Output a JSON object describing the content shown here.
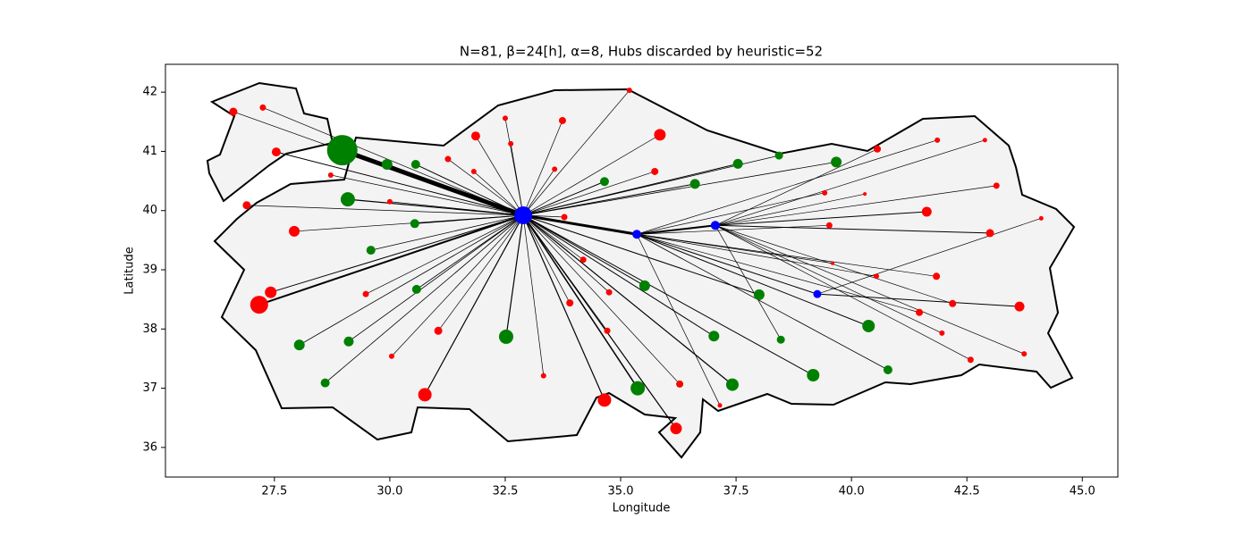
{
  "chart_data": {
    "type": "scatter",
    "title": "N=81, β=24[h], α=8, Hubs discarded by heuristic=52",
    "x_label": "Longitude",
    "y_label": "Latitude",
    "xlim": [
      25.14,
      45.77
    ],
    "ylim": [
      35.5,
      42.47
    ],
    "xticks": [
      27.5,
      {
        "value": 30,
        "label": "30.0"
      },
      32.5,
      {
        "value": 35,
        "label": "35.0"
      },
      37.5,
      {
        "value": 40,
        "label": "40.0"
      },
      42.5,
      {
        "value": 45,
        "label": "45.0"
      }
    ],
    "yticks": [
      36,
      37,
      38,
      39,
      40,
      41,
      42
    ],
    "x": [
      32.89,
      35.35,
      37.05,
      39.26,
      28.97,
      29.94,
      30.56,
      29.09,
      30.54,
      29.59,
      30.58,
      28.04,
      29.11,
      28.6,
      32.52,
      34.65,
      36.61,
      37.54,
      38.43,
      39.67,
      35.52,
      38.0,
      37.02,
      38.47,
      40.37,
      40.79,
      39.17,
      37.42,
      35.37,
      26.61,
      27.25,
      27.54,
      28.72,
      26.9,
      30.0,
      27.93,
      27.42,
      27.17,
      29.48,
      30.04,
      31.05,
      30.76,
      31.86,
      31.26,
      31.82,
      32.5,
      32.62,
      33.74,
      33.57,
      35.19,
      35.85,
      35.74,
      33.78,
      34.19,
      33.9,
      34.75,
      34.71,
      33.33,
      34.65,
      36.2,
      36.28,
      37.15,
      40.56,
      39.42,
      40.29,
      41.86,
      42.89,
      43.14,
      41.63,
      44.11,
      39.52,
      43.0,
      39.59,
      40.54,
      41.84,
      41.47,
      42.19,
      41.96,
      43.64,
      43.74,
      42.58
    ],
    "y": [
      39.92,
      39.6,
      39.75,
      38.59,
      41.02,
      40.78,
      40.78,
      40.19,
      39.78,
      39.33,
      38.67,
      37.73,
      37.79,
      37.09,
      37.87,
      40.49,
      40.45,
      40.79,
      40.93,
      40.82,
      38.73,
      38.58,
      37.88,
      37.82,
      38.05,
      37.31,
      37.22,
      37.06,
      37.0,
      41.67,
      41.74,
      40.99,
      40.6,
      40.09,
      40.15,
      39.65,
      38.62,
      38.41,
      38.59,
      37.54,
      37.97,
      36.89,
      41.26,
      40.87,
      40.66,
      41.56,
      41.13,
      41.52,
      40.7,
      42.03,
      41.28,
      40.66,
      39.89,
      39.17,
      38.44,
      38.62,
      37.97,
      37.21,
      36.8,
      36.32,
      37.07,
      36.71,
      41.04,
      40.3,
      40.28,
      41.19,
      41.19,
      40.42,
      39.98,
      39.87,
      39.75,
      39.62,
      39.11,
      38.89,
      38.89,
      38.28,
      38.43,
      37.93,
      38.38,
      37.58,
      37.48
    ],
    "sizes": [
      10,
      5,
      5,
      4.5,
      17,
      6,
      5,
      8,
      5,
      5,
      5,
      6,
      5.5,
      5,
      8,
      5,
      5.5,
      5.5,
      4.5,
      6,
      6,
      6,
      6,
      4.5,
      7,
      5,
      7,
      7,
      8,
      4.5,
      3.5,
      5,
      3,
      4.5,
      3,
      6,
      6.5,
      10,
      3.5,
      3,
      4.5,
      7.5,
      5,
      3.5,
      3,
      3,
      3,
      4,
      3,
      3,
      6.5,
      4,
      3.5,
      3.5,
      4,
      3.5,
      3.5,
      3,
      7.5,
      6.5,
      4,
      2.5,
      4,
      3,
      2,
      3,
      2.5,
      3.5,
      5.5,
      2.5,
      3.5,
      4.5,
      2,
      3,
      4,
      4,
      4,
      3,
      5.5,
      3,
      3.5
    ],
    "colors": [
      "blue",
      "blue",
      "blue",
      "blue",
      "green",
      "green",
      "green",
      "green",
      "green",
      "green",
      "green",
      "green",
      "green",
      "green",
      "green",
      "green",
      "green",
      "green",
      "green",
      "green",
      "green",
      "green",
      "green",
      "green",
      "green",
      "green",
      "green",
      "green",
      "green",
      "red",
      "red",
      "red",
      "red",
      "red",
      "red",
      "red",
      "red",
      "red",
      "red",
      "red",
      "red",
      "red",
      "red",
      "red",
      "red",
      "red",
      "red",
      "red",
      "red",
      "red",
      "red",
      "red",
      "red",
      "red",
      "red",
      "red",
      "red",
      "red",
      "red",
      "red",
      "red",
      "red",
      "red",
      "red",
      "red",
      "red",
      "red",
      "red",
      "red",
      "red",
      "red",
      "red",
      "red",
      "red",
      "red",
      "red",
      "red",
      "red",
      "red",
      "red",
      "red"
    ],
    "edges": [
      [
        0,
        1
      ],
      [
        0,
        4
      ],
      [
        0,
        5
      ],
      [
        0,
        6
      ],
      [
        0,
        7
      ],
      [
        0,
        8
      ],
      [
        0,
        9
      ],
      [
        0,
        10
      ],
      [
        0,
        11
      ],
      [
        0,
        12
      ],
      [
        0,
        13
      ],
      [
        0,
        14
      ],
      [
        0,
        15
      ],
      [
        0,
        16
      ],
      [
        0,
        17
      ],
      [
        0,
        18
      ],
      [
        0,
        19
      ],
      [
        0,
        20
      ],
      [
        0,
        21
      ],
      [
        0,
        22
      ],
      [
        0,
        26
      ],
      [
        0,
        27
      ],
      [
        0,
        28
      ],
      [
        0,
        29
      ],
      [
        0,
        30
      ],
      [
        0,
        31
      ],
      [
        0,
        32
      ],
      [
        0,
        33
      ],
      [
        0,
        34
      ],
      [
        0,
        35
      ],
      [
        0,
        36
      ],
      [
        0,
        37
      ],
      [
        0,
        38
      ],
      [
        0,
        39
      ],
      [
        0,
        40
      ],
      [
        0,
        41
      ],
      [
        0,
        42
      ],
      [
        0,
        43
      ],
      [
        0,
        44
      ],
      [
        0,
        45
      ],
      [
        0,
        46
      ],
      [
        0,
        47
      ],
      [
        0,
        48
      ],
      [
        0,
        49
      ],
      [
        0,
        50
      ],
      [
        0,
        51
      ],
      [
        0,
        52
      ],
      [
        0,
        53
      ],
      [
        0,
        54
      ],
      [
        0,
        55
      ],
      [
        0,
        56
      ],
      [
        0,
        57
      ],
      [
        0,
        58
      ],
      [
        0,
        59
      ],
      [
        0,
        60
      ],
      [
        1,
        2
      ],
      [
        1,
        3
      ],
      [
        1,
        61
      ],
      [
        1,
        63
      ],
      [
        1,
        65
      ],
      [
        1,
        70
      ],
      [
        1,
        72
      ],
      [
        1,
        73
      ],
      [
        1,
        74
      ],
      [
        1,
        75
      ],
      [
        1,
        24
      ],
      [
        1,
        25
      ],
      [
        2,
        62
      ],
      [
        2,
        64
      ],
      [
        2,
        66
      ],
      [
        2,
        67
      ],
      [
        2,
        68
      ],
      [
        2,
        71
      ],
      [
        2,
        76
      ],
      [
        2,
        77
      ],
      [
        2,
        79
      ],
      [
        2,
        80
      ],
      [
        2,
        23
      ],
      [
        3,
        69
      ],
      [
        3,
        78
      ]
    ],
    "edge_widths": [
      3,
      5,
      1.5,
      1,
      1.2,
      1,
      0.8,
      0.8,
      0.8,
      0.8,
      0.8,
      1.2,
      1,
      1,
      1,
      0.8,
      0.8,
      1,
      1,
      1,
      1,
      1.2,
      1.5,
      0.7,
      0.7,
      1,
      0.7,
      0.7,
      0.7,
      0.7,
      1,
      2,
      0.7,
      0.7,
      0.7,
      1.2,
      0.7,
      0.7,
      0.7,
      0.7,
      0.7,
      0.7,
      0.7,
      0.7,
      0.7,
      0.7,
      0.7,
      0.7,
      0.7,
      0.7,
      0.7,
      0.7,
      1.2,
      1.2,
      0.7,
      2,
      1,
      0.7,
      0.7,
      0.7,
      0.7,
      0.7,
      0.7,
      0.7,
      0.7,
      1,
      0.8,
      0.7,
      0.7,
      0.7,
      0.7,
      1,
      1,
      0.7,
      0.7,
      0.7,
      0.7,
      0.7,
      0.7,
      1
    ]
  }
}
